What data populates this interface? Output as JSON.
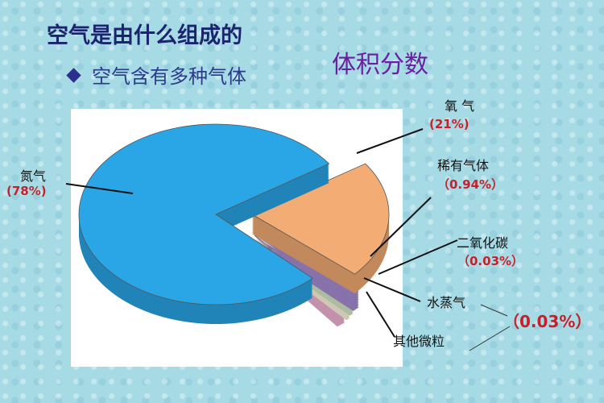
{
  "slide": {
    "title": "空气是由什么组成的",
    "bullet": "空气含有多种气体",
    "subtitle": "体积分数"
  },
  "chart_data": {
    "type": "pie",
    "style": "3d-exploded",
    "legend": "none",
    "slices": [
      {
        "name": "氮气",
        "value": 78,
        "label": "(78%)",
        "color": "#2aa6e6"
      },
      {
        "name": "氧 气",
        "value": 21,
        "label": "(21%)",
        "color": "#f2ac74"
      },
      {
        "name": "稀有气体",
        "value": 0.94,
        "label": "（0.94%）",
        "color": "#a98fd6"
      },
      {
        "name": "二氧化碳",
        "value": 0.03,
        "label": "（0.03%）",
        "color": "#d9ecc8"
      },
      {
        "name": "水蒸气",
        "value": 0.03,
        "label": "",
        "color": "#fffbe0"
      },
      {
        "name": "其他微粒",
        "value": 0.03,
        "label": "",
        "color": "#f6b6d8"
      }
    ],
    "shared_label": "（0.03%）"
  }
}
